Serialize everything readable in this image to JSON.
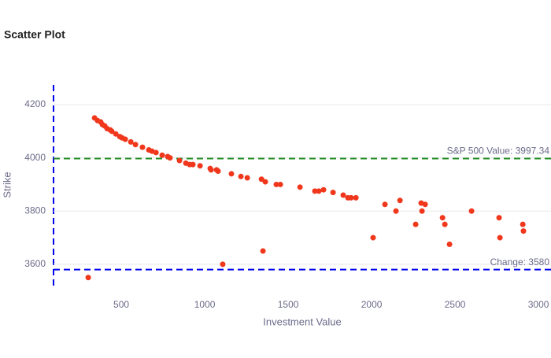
{
  "chart_data": {
    "type": "scatter",
    "title": "Scatter Plot",
    "x_label": "Investment Value",
    "y_label": "Strike",
    "color": "#f0371c",
    "x": [
      340,
      358,
      377,
      387,
      401,
      415,
      434,
      443,
      467,
      491,
      505,
      524,
      557,
      585,
      627,
      665,
      684,
      708,
      745,
      778,
      792,
      849,
      887,
      910,
      929,
      972,
      1033,
      1038,
      1071,
      1080,
      1160,
      1217,
      1255,
      1340,
      1363,
      1429,
      1453,
      1571,
      1660,
      1684,
      1712,
      1769,
      1830,
      1858,
      1877,
      1906,
      2080,
      2170,
      2146,
      2297,
      2321,
      2302,
      2264,
      2425,
      2439,
      2467,
      2599,
      2764,
      2769,
      2906,
      2910,
      2009,
      1108,
      1349,
      302
    ],
    "values": [
      4150,
      4140,
      4135,
      4125,
      4120,
      4110,
      4105,
      4100,
      4090,
      4080,
      4075,
      4070,
      4060,
      4050,
      4040,
      4030,
      4025,
      4020,
      4010,
      4005,
      4000,
      3990,
      3980,
      3975,
      3975,
      3970,
      3960,
      3955,
      3955,
      3950,
      3940,
      3930,
      3925,
      3920,
      3910,
      3900,
      3900,
      3890,
      3875,
      3875,
      3880,
      3870,
      3860,
      3850,
      3850,
      3850,
      3825,
      3840,
      3800,
      3830,
      3825,
      3800,
      3750,
      3775,
      3750,
      3675,
      3800,
      3775,
      3700,
      3750,
      3725,
      3700,
      3600,
      3650,
      3550
    ],
    "xlim": [
      94,
      3075
    ],
    "ylim": [
      3505,
      4274
    ],
    "xticks": [
      500,
      1000,
      1500,
      2000,
      2500,
      3000
    ],
    "yticks": [
      3600,
      3800,
      4000,
      4200
    ],
    "grid": true,
    "hlines": [
      {
        "value": 3997.34,
        "color": "#228b22",
        "text": "S&P 500 Value: 3997.34"
      },
      {
        "value": 3580,
        "color": "#0000ee",
        "text": "Change: 3580"
      }
    ]
  }
}
